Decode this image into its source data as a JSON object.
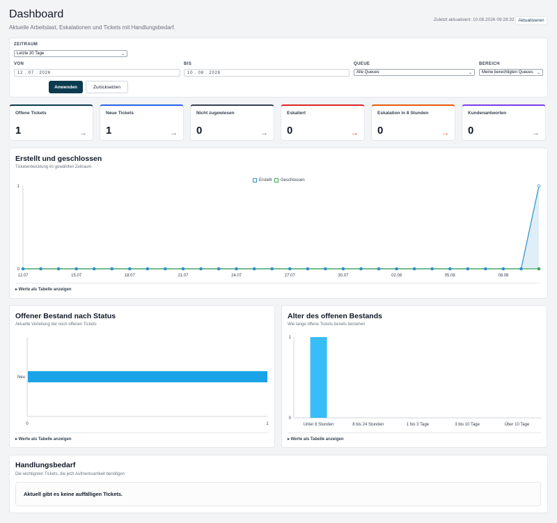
{
  "header": {
    "title": "Dashboard",
    "subtitle": "Aktuelle Arbeitslast, Eskalationen und Tickets mit Handlungsbedarf.",
    "last_updated": "Zuletzt aktualisiert: 10.08.2026 09:28:32",
    "refresh_label": "Aktualisieren"
  },
  "filters": {
    "period_label": "ZEITRAUM",
    "period_value": "Letzte 30 Tage",
    "from_label": "VON",
    "from_value": "12 . 07 . 2026",
    "to_label": "BIS",
    "to_value": "10 . 08 . 2026",
    "queue_label": "QUEUE",
    "queue_value": "Alle Queues",
    "area_label": "BEREICH",
    "area_value": "Meine berechtigten Queues",
    "apply_label": "Anwenden",
    "reset_label": "Zurücksetzen"
  },
  "kpis": [
    {
      "label": "Offene Tickets",
      "value": "1",
      "color": "#0b3b4f"
    },
    {
      "label": "Neue Tickets",
      "value": "1",
      "color": "#2563eb"
    },
    {
      "label": "Nicht zugewiesen",
      "value": "0",
      "color": "#334155"
    },
    {
      "label": "Eskaliert",
      "value": "0",
      "color": "#dc2626"
    },
    {
      "label": "Eskalation in 8 Stunden",
      "value": "0",
      "color": "#ea580c"
    },
    {
      "label": "Kundenantworten",
      "value": "0",
      "color": "#7c3aed"
    }
  ],
  "trend_card": {
    "title": "Erstellt und geschlossen",
    "subtitle": "Ticketentwicklung im gewählten Zeitraum",
    "toggle_label": "▸ Werte als Tabelle anzeigen",
    "chart_data": {
      "type": "line",
      "x": [
        "12.07",
        "13.07",
        "14.07",
        "15.07",
        "16.07",
        "17.07",
        "18.07",
        "19.07",
        "20.07",
        "21.07",
        "22.07",
        "23.07",
        "24.07",
        "25.07",
        "26.07",
        "27.07",
        "28.07",
        "29.07",
        "30.07",
        "31.07",
        "01.08",
        "02.08",
        "03.08",
        "04.08",
        "05.08",
        "06.08",
        "07.08",
        "08.08",
        "09.08",
        "10.08"
      ],
      "x_tick_labels": [
        "12.07",
        "15.07",
        "18.07",
        "21.07",
        "24.07",
        "27.07",
        "30.07",
        "02.08",
        "05.08",
        "08.08"
      ],
      "series": [
        {
          "name": "Erstellt",
          "color": "#2b8fc9",
          "values": [
            0,
            0,
            0,
            0,
            0,
            0,
            0,
            0,
            0,
            0,
            0,
            0,
            0,
            0,
            0,
            0,
            0,
            0,
            0,
            0,
            0,
            0,
            0,
            0,
            0,
            0,
            0,
            0,
            0,
            1
          ]
        },
        {
          "name": "Geschlossen",
          "color": "#3aa655",
          "values": [
            0,
            0,
            0,
            0,
            0,
            0,
            0,
            0,
            0,
            0,
            0,
            0,
            0,
            0,
            0,
            0,
            0,
            0,
            0,
            0,
            0,
            0,
            0,
            0,
            0,
            0,
            0,
            0,
            0,
            0
          ]
        }
      ],
      "y_ticks": [
        "0",
        "1"
      ],
      "ylim": [
        0,
        1
      ],
      "legend": "top-center"
    }
  },
  "status_card": {
    "title": "Offener Bestand nach Status",
    "subtitle": "Aktuelle Verteilung der noch offenen Tickets",
    "toggle_label": "▸ Werte als Tabelle anzeigen",
    "chart_data": {
      "type": "bar",
      "orientation": "horizontal",
      "categories": [
        "Neu"
      ],
      "values": [
        1
      ],
      "xlim": [
        0,
        1
      ],
      "x_ticks": [
        "0",
        "1"
      ],
      "color": "#1aa3e6"
    }
  },
  "age_card": {
    "title": "Alter des offenen Bestands",
    "subtitle": "Wie lange offene Tickets bereits bestehen",
    "toggle_label": "▸ Werte als Tabelle anzeigen",
    "chart_data": {
      "type": "bar",
      "categories": [
        "Unter 8 Stunden",
        "8 bis 24 Stunden",
        "1 bis 3 Tage",
        "3 bis 10 Tage",
        "Über 10 Tage"
      ],
      "values": [
        1,
        0,
        0,
        0,
        0
      ],
      "ylim": [
        0,
        1
      ],
      "y_ticks": [
        "0",
        "1"
      ],
      "color": "#38bdf8"
    }
  },
  "action_card": {
    "title": "Handlungsbedarf",
    "subtitle": "Die wichtigsten Tickets, die jetzt Aufmerksamkeit benötigen",
    "empty_text": "Aktuell gibt es keine auffälligen Tickets."
  }
}
